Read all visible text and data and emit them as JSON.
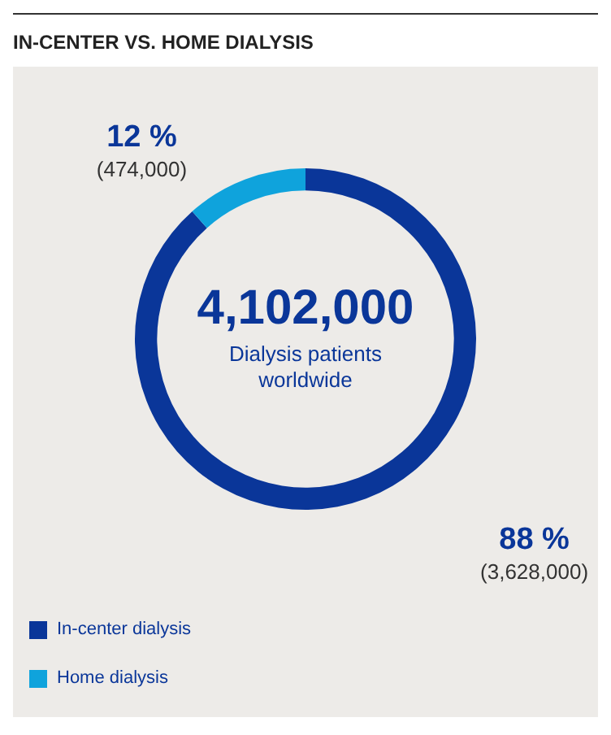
{
  "chart_data": {
    "type": "donut",
    "title": "IN-CENTER VS. HOME DIALYSIS",
    "categories": [
      "In-center dialysis",
      "Home dialysis"
    ],
    "values": [
      3628000,
      474000
    ],
    "colors": [
      "#0a3699",
      "#0fa3dc"
    ],
    "value_labels": [
      "88 %\n(3,628,000)",
      "12 %\n(474,000)"
    ],
    "annotations": [
      "4,102,000",
      "Dialysis patients\nworldwide"
    ],
    "legend": "bottom left"
  }
}
